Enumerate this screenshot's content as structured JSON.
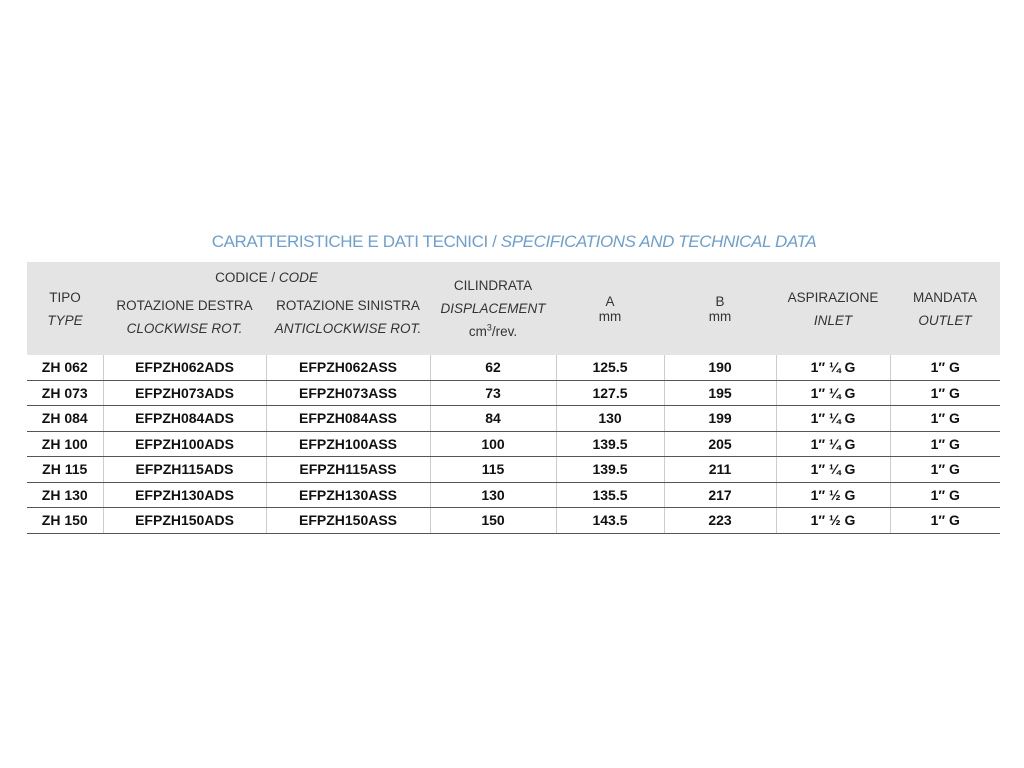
{
  "title": {
    "it": "CARATTERISTICHE E DATI TECNICI /",
    "en": "SPECIFICATIONS AND TECHNICAL DATA"
  },
  "header": {
    "tipo": "TIPO",
    "type": "TYPE",
    "codice": "CODICE /",
    "code": "CODE",
    "rot_destra": "ROTAZIONE DESTRA",
    "clockwise": "CLOCKWISE ROT.",
    "rot_sinistra": "ROTAZIONE SINISTRA",
    "anticlockwise": "ANTICLOCKWISE ROT.",
    "cilindrata": "CILINDRATA",
    "displacement": "DISPLACEMENT",
    "unit_cm": "cm",
    "unit_sup": "3",
    "unit_rev": "/rev.",
    "a": "A",
    "a_unit": "mm",
    "b": "B",
    "b_unit": "mm",
    "aspirazione": "ASPIRAZIONE",
    "inlet": "INLET",
    "mandata": "MANDATA",
    "outlet": "OUTLET"
  },
  "rows": [
    [
      "ZH 062",
      "EFPZH062ADS",
      "EFPZH062ASS",
      "62",
      "125.5",
      "190",
      "1″ ¼ G",
      "1″ G"
    ],
    [
      "ZH 073",
      "EFPZH073ADS",
      "EFPZH073ASS",
      "73",
      "127.5",
      "195",
      "1″ ¼ G",
      "1″ G"
    ],
    [
      "ZH 084",
      "EFPZH084ADS",
      "EFPZH084ASS",
      "84",
      "130",
      "199",
      "1″ ¼ G",
      "1″ G"
    ],
    [
      "ZH 100",
      "EFPZH100ADS",
      "EFPZH100ASS",
      "100",
      "139.5",
      "205",
      "1″ ¼ G",
      "1″ G"
    ],
    [
      "ZH 115",
      "EFPZH115ADS",
      "EFPZH115ASS",
      "115",
      "139.5",
      "211",
      "1″ ¼ G",
      "1″ G"
    ],
    [
      "ZH 130",
      "EFPZH130ADS",
      "EFPZH130ASS",
      "130",
      "135.5",
      "217",
      "1″ ½ G",
      "1″ G"
    ],
    [
      "ZH 150",
      "EFPZH150ADS",
      "EFPZH150ASS",
      "150",
      "143.5",
      "223",
      "1″ ½ G",
      "1″ G"
    ]
  ]
}
